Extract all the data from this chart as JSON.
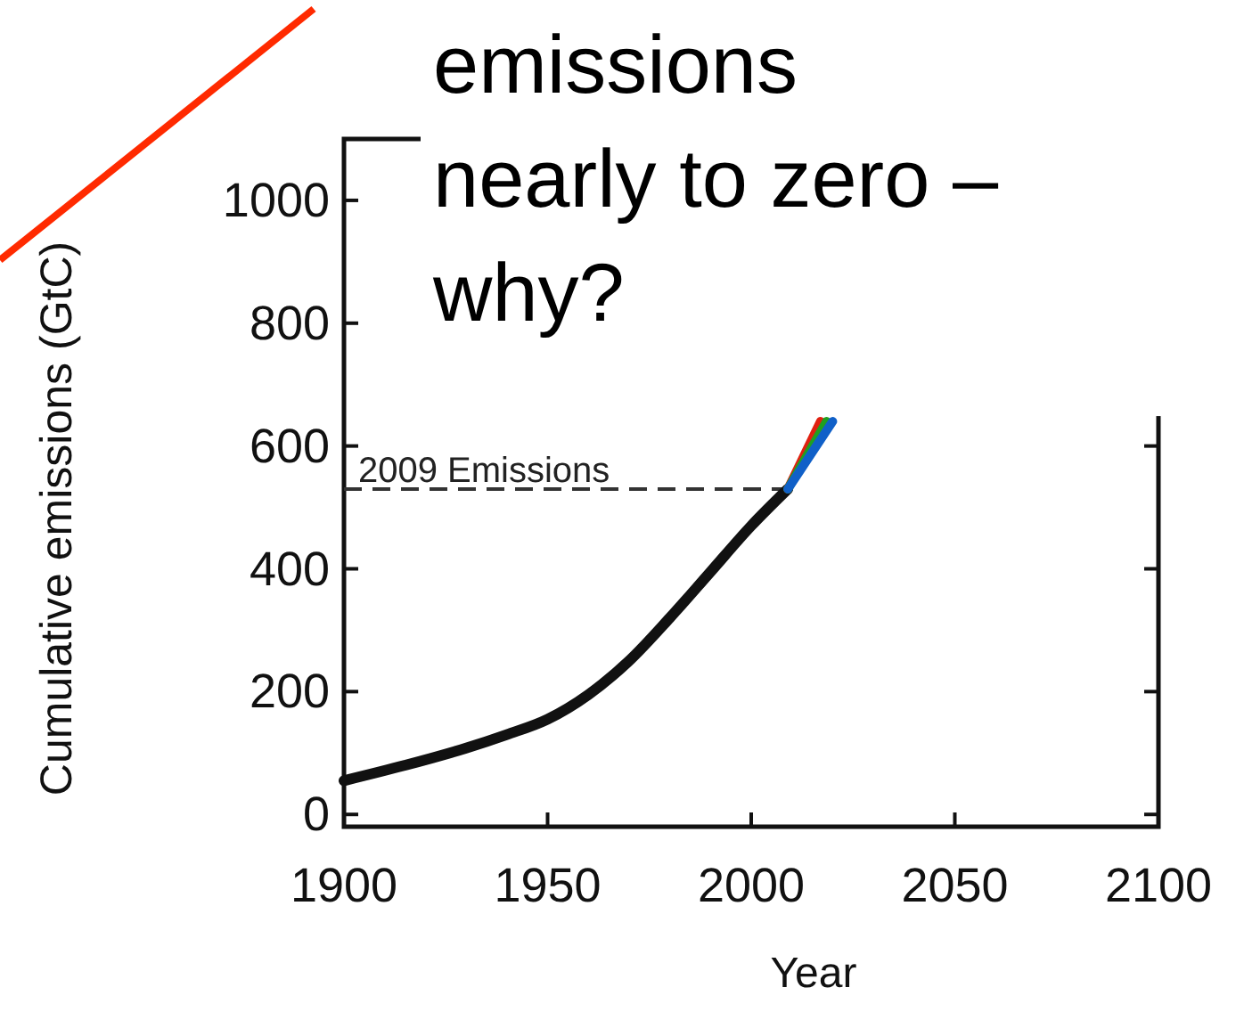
{
  "chart_data": {
    "type": "line",
    "title": "emissions\nnearly to zero –\nwhy?",
    "xlabel": "Year",
    "ylabel": "Cumulative emissions (GtC)",
    "xlim": [
      1900,
      2100
    ],
    "ylim": [
      -20,
      1100
    ],
    "xticks": [
      1900,
      1950,
      2000,
      2050,
      2100
    ],
    "yticks": [
      0,
      200,
      400,
      600,
      800,
      1000
    ],
    "series": [
      {
        "color": "#111111",
        "x": [
          1900,
          1915,
          1930,
          1940,
          1950,
          1960,
          1970,
          1980,
          1990,
          2000,
          2009
        ],
        "values": [
          55,
          80,
          108,
          130,
          155,
          195,
          250,
          320,
          395,
          470,
          530
        ]
      },
      {
        "color": "#e02010",
        "x": [
          2009,
          2017
        ],
        "values": [
          530,
          640
        ]
      },
      {
        "color": "#20a020",
        "x": [
          2009,
          2018.5
        ],
        "values": [
          530,
          640
        ]
      },
      {
        "color": "#1060c8",
        "x": [
          2009,
          2020
        ],
        "values": [
          530,
          640
        ]
      }
    ],
    "ref_lines": [
      {
        "axis": "y",
        "value": 530,
        "label": "2009 Emissions",
        "line_style": "dashed"
      }
    ]
  }
}
